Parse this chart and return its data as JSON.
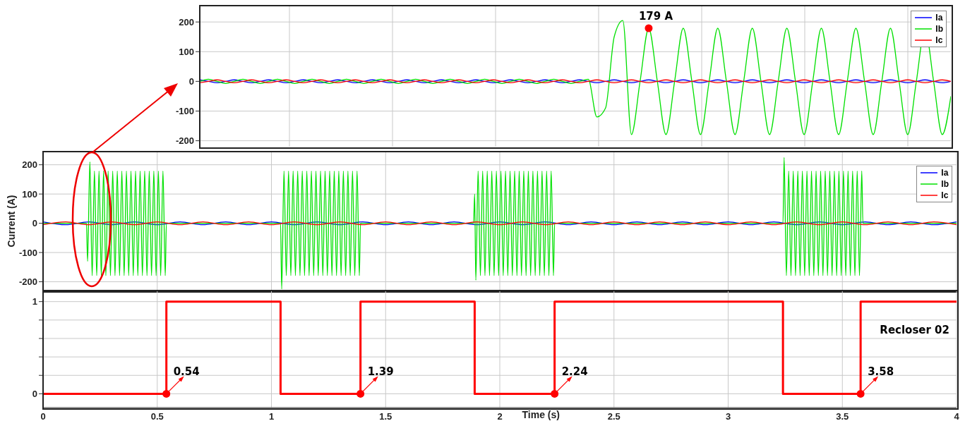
{
  "chart_data": [
    {
      "type": "line",
      "categories": [
        null,
        null,
        null,
        null,
        null,
        null,
        null,
        null,
        null,
        null,
        null,
        null,
        null,
        null,
        null,
        null,
        null,
        null,
        null,
        null,
        null,
        null,
        null,
        null,
        null,
        null,
        null,
        null,
        null,
        null,
        null,
        null,
        null,
        null,
        null,
        null,
        null,
        null,
        null,
        null,
        null,
        null,
        null,
        null,
        null,
        null,
        null,
        null,
        null,
        null,
        null,
        null,
        null,
        null,
        null,
        null,
        null,
        null,
        null,
        null,
        null,
        null,
        null,
        null,
        null,
        null,
        null,
        null,
        null,
        null,
        null,
        null,
        null,
        null,
        null,
        null,
        null,
        null,
        null,
        null,
        null,
        null,
        null,
        null,
        null,
        null,
        null,
        null
      ],
      "ylim": [
        -220,
        255
      ],
      "yticks": [
        -200,
        -100,
        0,
        100,
        200
      ],
      "tick_labels": "y",
      "grid": true,
      "legend": "top right",
      "marker": "none",
      "annotations": [
        {
          "text": "179 A",
          "y": 179
        }
      ],
      "series": [
        {
          "name": "Ia",
          "color": "#0000ff",
          "values": [
            5,
            0,
            -5,
            0,
            5,
            0,
            -5,
            0,
            5,
            0,
            -5,
            0,
            5,
            0,
            -5,
            0,
            5,
            0,
            -5,
            0,
            5,
            0,
            -5,
            0,
            5,
            0,
            -5,
            0,
            5,
            0,
            -5,
            0,
            5,
            0,
            -5,
            0,
            5,
            0,
            -5,
            0,
            5,
            0,
            -5,
            0,
            5,
            0,
            -5,
            0,
            5,
            0,
            -5,
            0,
            5,
            0,
            -5,
            0,
            5,
            0,
            -5,
            0,
            5,
            0,
            -5,
            0,
            5,
            0,
            -5,
            0,
            5,
            0,
            -5,
            0,
            5,
            0,
            -5,
            0,
            5,
            0,
            -5,
            0,
            5,
            0,
            -5,
            0,
            5,
            0,
            -5,
            0
          ]
        },
        {
          "name": "Ib",
          "color": "#00e000",
          "values": [
            0,
            7,
            0,
            -7,
            0,
            7,
            0,
            -7,
            0,
            7,
            0,
            -7,
            0,
            7,
            0,
            -7,
            0,
            7,
            0,
            -7,
            0,
            7,
            0,
            -7,
            0,
            7,
            0,
            -7,
            0,
            7,
            0,
            -7,
            0,
            7,
            0,
            -7,
            0,
            7,
            0,
            -7,
            0,
            7,
            0,
            -7,
            0,
            7,
            -120,
            -90,
            150,
            205,
            -179,
            0,
            179,
            0,
            -179,
            0,
            179,
            0,
            -179,
            0,
            179,
            0,
            -179,
            0,
            179,
            0,
            -179,
            0,
            179,
            0,
            -179,
            0,
            179,
            0,
            -179,
            0,
            179,
            0,
            -179,
            0,
            179,
            0,
            -179,
            0,
            179,
            0,
            -179,
            -50
          ]
        },
        {
          "name": "Ic",
          "color": "#ff0000",
          "values": [
            -5,
            0,
            5,
            0,
            -5,
            0,
            5,
            0,
            -5,
            0,
            5,
            0,
            -5,
            0,
            5,
            0,
            -5,
            0,
            5,
            0,
            -5,
            0,
            5,
            0,
            -5,
            0,
            5,
            0,
            -5,
            0,
            5,
            0,
            -5,
            0,
            5,
            0,
            -5,
            0,
            5,
            0,
            -5,
            0,
            5,
            0,
            -5,
            0,
            5,
            0,
            -5,
            0,
            5,
            0,
            -5,
            0,
            5,
            0,
            -5,
            0,
            5,
            0,
            -5,
            0,
            5,
            0,
            -5,
            0,
            5,
            0,
            -5,
            0,
            5,
            0,
            -5,
            0,
            5,
            0,
            -5,
            0,
            5,
            0,
            -5,
            0,
            5,
            0,
            -5,
            0,
            5,
            0
          ]
        },
        {
          "type": "scatter",
          "color": "#ff0000",
          "marker": "circle",
          "values": [
            null,
            null,
            null,
            null,
            null,
            null,
            null,
            null,
            null,
            null,
            null,
            null,
            null,
            null,
            null,
            null,
            null,
            null,
            null,
            null,
            null,
            null,
            null,
            null,
            null,
            null,
            null,
            null,
            null,
            null,
            null,
            null,
            null,
            null,
            null,
            null,
            null,
            null,
            null,
            null,
            null,
            null,
            null,
            null,
            null,
            null,
            null,
            null,
            null,
            null,
            null,
            null,
            179,
            null,
            null,
            null,
            null,
            null,
            null,
            null,
            null,
            null,
            null,
            null,
            null,
            null,
            null,
            null,
            null,
            null,
            null,
            null,
            null,
            null,
            null,
            null,
            null,
            null,
            null,
            null,
            null,
            null,
            null,
            null,
            null,
            null,
            null,
            null
          ]
        }
      ]
    },
    {
      "type": "line",
      "ylabel": "Current (A)",
      "xlim": [
        0,
        4
      ],
      "xticks": [
        0,
        0.5,
        1,
        1.5,
        2,
        2.5,
        3,
        3.5,
        4
      ],
      "ylim": [
        -230,
        245
      ],
      "yticks": [
        -200,
        -100,
        0,
        100,
        200
      ],
      "tick_labels": "y",
      "grid": true,
      "legend": "top right",
      "marker": "none",
      "series": [
        {
          "name": "Ia",
          "color": "#0000ff",
          "x": [
            0,
            0.1,
            0.2,
            0.3,
            0.4,
            0.5,
            0.6,
            0.7,
            0.8,
            0.9,
            1,
            1.1,
            1.2,
            1.3,
            1.4,
            1.5,
            1.6,
            1.7,
            1.8,
            1.9,
            2,
            2.1,
            2.2,
            2.3,
            2.4,
            2.5,
            2.6,
            2.7,
            2.8,
            2.9,
            3,
            3.1,
            3.2,
            3.3,
            3.4,
            3.5,
            3.6,
            3.7,
            3.8,
            3.9,
            4
          ],
          "values": [
            5,
            -5,
            5,
            -5,
            5,
            -5,
            5,
            -5,
            5,
            -5,
            5,
            -5,
            5,
            -5,
            5,
            -5,
            5,
            -5,
            5,
            -5,
            5,
            -5,
            5,
            -5,
            5,
            -5,
            5,
            -5,
            5,
            -5,
            5,
            -5,
            5,
            -5,
            5,
            -5,
            5,
            -5,
            5,
            -5,
            5
          ]
        },
        {
          "name": "Ib",
          "color": "#00e000",
          "x": [
            0,
            0.19,
            0.195,
            0.205,
            0.215,
            0.225,
            0.235,
            0.245,
            0.255,
            0.265,
            0.275,
            0.285,
            0.295,
            0.305,
            0.315,
            0.325,
            0.335,
            0.345,
            0.355,
            0.365,
            0.375,
            0.385,
            0.395,
            0.405,
            0.415,
            0.425,
            0.435,
            0.445,
            0.455,
            0.465,
            0.475,
            0.485,
            0.495,
            0.505,
            0.515,
            0.525,
            0.535,
            0.54,
            1.04,
            1.045,
            1.055,
            1.065,
            1.075,
            1.085,
            1.095,
            1.105,
            1.115,
            1.125,
            1.135,
            1.145,
            1.155,
            1.165,
            1.175,
            1.185,
            1.195,
            1.205,
            1.215,
            1.225,
            1.235,
            1.245,
            1.255,
            1.265,
            1.275,
            1.285,
            1.295,
            1.305,
            1.315,
            1.325,
            1.335,
            1.345,
            1.355,
            1.365,
            1.375,
            1.385,
            1.39,
            1.885,
            1.89,
            1.895,
            1.905,
            1.915,
            1.925,
            1.935,
            1.945,
            1.955,
            1.965,
            1.975,
            1.985,
            1.995,
            2.005,
            2.015,
            2.025,
            2.035,
            2.045,
            2.055,
            2.065,
            2.075,
            2.085,
            2.095,
            2.105,
            2.115,
            2.125,
            2.135,
            2.145,
            2.155,
            2.165,
            2.175,
            2.185,
            2.195,
            2.205,
            2.215,
            2.225,
            2.235,
            2.24,
            3.24,
            3.245,
            3.255,
            3.265,
            3.275,
            3.285,
            3.295,
            3.305,
            3.315,
            3.325,
            3.335,
            3.345,
            3.355,
            3.365,
            3.375,
            3.385,
            3.395,
            3.405,
            3.415,
            3.425,
            3.435,
            3.445,
            3.455,
            3.465,
            3.475,
            3.485,
            3.495,
            3.505,
            3.515,
            3.525,
            3.535,
            3.545,
            3.555,
            3.565,
            3.575,
            3.585,
            3.59,
            4
          ],
          "values": [
            0,
            0,
            -130,
            210,
            -179,
            179,
            -179,
            179,
            -179,
            179,
            -179,
            179,
            -179,
            179,
            -179,
            179,
            -179,
            179,
            -179,
            179,
            -179,
            179,
            -179,
            179,
            -179,
            179,
            -179,
            179,
            -179,
            179,
            -179,
            179,
            -179,
            179,
            -179,
            179,
            -179,
            0,
            0,
            -225,
            179,
            -179,
            179,
            -179,
            179,
            -179,
            179,
            -179,
            179,
            -179,
            179,
            -179,
            179,
            -179,
            179,
            -179,
            179,
            -179,
            179,
            -179,
            179,
            -179,
            179,
            -179,
            179,
            -179,
            179,
            -179,
            179,
            -179,
            179,
            -179,
            179,
            -179,
            0,
            0,
            100,
            -195,
            179,
            -179,
            179,
            -179,
            179,
            -179,
            179,
            -179,
            179,
            -179,
            179,
            -179,
            179,
            -179,
            179,
            -179,
            179,
            -179,
            179,
            -179,
            179,
            -179,
            179,
            -179,
            179,
            -179,
            179,
            -179,
            179,
            -179,
            179,
            -179,
            179,
            -179,
            0,
            0,
            225,
            -179,
            179,
            -179,
            179,
            -179,
            179,
            -179,
            179,
            -179,
            179,
            -179,
            179,
            -179,
            179,
            -179,
            179,
            -179,
            179,
            -179,
            179,
            -179,
            179,
            -179,
            179,
            -179,
            179,
            -179,
            179,
            -179,
            179,
            -179,
            179,
            -179,
            179,
            0,
            0
          ]
        },
        {
          "name": "Ic",
          "color": "#ff0000",
          "x": [
            0,
            0.1,
            0.2,
            0.3,
            0.4,
            0.5,
            0.6,
            0.7,
            0.8,
            0.9,
            1,
            1.1,
            1.2,
            1.3,
            1.4,
            1.5,
            1.6,
            1.7,
            1.8,
            1.9,
            2,
            2.1,
            2.2,
            2.3,
            2.4,
            2.5,
            2.6,
            2.7,
            2.8,
            2.9,
            3,
            3.1,
            3.2,
            3.3,
            3.4,
            3.5,
            3.6,
            3.7,
            3.8,
            3.9,
            4
          ],
          "values": [
            -5,
            5,
            -5,
            5,
            -5,
            5,
            -5,
            5,
            -5,
            5,
            -5,
            5,
            -5,
            5,
            -5,
            5,
            -5,
            5,
            -5,
            5,
            -5,
            5,
            -5,
            5,
            -5,
            5,
            -5,
            5,
            -5,
            5,
            -5,
            5,
            -5,
            5,
            -5,
            5,
            -5,
            5,
            -5,
            5,
            -5
          ]
        }
      ]
    },
    {
      "type": "step",
      "xlabel": "Time (s)",
      "xlim": [
        0,
        4
      ],
      "xticks": [
        0,
        0.5,
        1,
        1.5,
        2,
        2.5,
        3,
        3.5,
        4
      ],
      "ylim": [
        -0.15,
        1.12
      ],
      "yticks": [
        0,
        {
          "value": 0.2,
          "label": null
        },
        {
          "value": 0.4,
          "label": null
        },
        {
          "value": 0.6,
          "label": null
        },
        {
          "value": 0.8,
          "label": null
        },
        1
      ],
      "grid": true,
      "annotations": [
        {
          "text": "0.54",
          "x": 0.54,
          "y": 0
        },
        {
          "text": "1.39",
          "x": 1.39,
          "y": 0
        },
        {
          "text": "2.24",
          "x": 2.24,
          "y": 0
        },
        {
          "text": "3.58",
          "x": 3.58,
          "y": 0
        }
      ],
      "series": [
        {
          "name": "Recloser 02",
          "color": "#ff0000",
          "x": [
            0,
            0.54,
            1.04,
            1.39,
            1.89,
            2.24,
            3.24,
            3.58,
            4
          ],
          "values": [
            0,
            1,
            0,
            1,
            0,
            1,
            0,
            1,
            1
          ]
        },
        {
          "type": "scatter",
          "color": "#ff0000",
          "marker": "circle",
          "x": [
            0.54,
            1.39,
            2.24,
            3.58
          ],
          "values": [
            0,
            0,
            0,
            0
          ]
        }
      ]
    }
  ]
}
